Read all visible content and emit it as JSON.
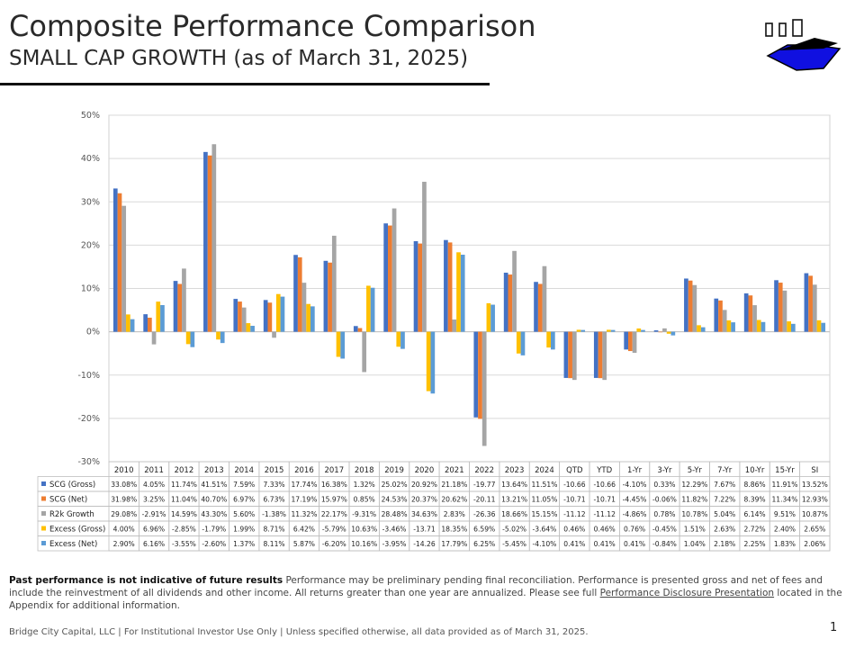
{
  "header": {
    "title": "Composite Performance Comparison",
    "subtitle": "SMALL CAP GROWTH (as of March 31, 2025)"
  },
  "chart_data": {
    "type": "bar",
    "categories": [
      "2010",
      "2011",
      "2012",
      "2013",
      "2014",
      "2015",
      "2016",
      "2017",
      "2018",
      "2019",
      "2020",
      "2021",
      "2022",
      "2023",
      "2024",
      "QTD",
      "YTD",
      "1-Yr",
      "3-Yr",
      "5-Yr",
      "7-Yr",
      "10-Yr",
      "15-Yr",
      "SI"
    ],
    "ylim": [
      -30,
      50
    ],
    "yticks": [
      -30,
      -20,
      -10,
      0,
      10,
      20,
      30,
      40,
      50
    ],
    "ytick_labels": [
      "-30%",
      "-20%",
      "-10%",
      "0%",
      "10%",
      "20%",
      "30%",
      "40%",
      "50%"
    ],
    "grid": true,
    "series": [
      {
        "name": "SCG (Gross)",
        "color": "#4472c4",
        "values": [
          33.08,
          4.05,
          11.74,
          41.51,
          7.59,
          7.33,
          17.74,
          16.38,
          1.32,
          25.02,
          20.92,
          21.18,
          -19.77,
          13.64,
          11.51,
          -10.66,
          -10.66,
          -4.1,
          0.33,
          12.29,
          7.67,
          8.86,
          11.91,
          13.52
        ],
        "labels": [
          "33.08%",
          "4.05%",
          "11.74%",
          "41.51%",
          "7.59%",
          "7.33%",
          "17.74%",
          "16.38%",
          "1.32%",
          "25.02%",
          "20.92%",
          "21.18%",
          "-19.77",
          "13.64%",
          "11.51%",
          "-10.66",
          "-10.66",
          "-4.10%",
          "0.33%",
          "12.29%",
          "7.67%",
          "8.86%",
          "11.91%",
          "13.52%"
        ]
      },
      {
        "name": "SCG (Net)",
        "color": "#ed7d31",
        "values": [
          31.98,
          3.25,
          11.04,
          40.7,
          6.97,
          6.73,
          17.19,
          15.97,
          0.85,
          24.53,
          20.37,
          20.62,
          -20.11,
          13.21,
          11.05,
          -10.71,
          -10.71,
          -4.45,
          -0.06,
          11.82,
          7.22,
          8.39,
          11.34,
          12.93
        ],
        "labels": [
          "31.98%",
          "3.25%",
          "11.04%",
          "40.70%",
          "6.97%",
          "6.73%",
          "17.19%",
          "15.97%",
          "0.85%",
          "24.53%",
          "20.37%",
          "20.62%",
          "-20.11",
          "13.21%",
          "11.05%",
          "-10.71",
          "-10.71",
          "-4.45%",
          "-0.06%",
          "11.82%",
          "7.22%",
          "8.39%",
          "11.34%",
          "12.93%"
        ]
      },
      {
        "name": "R2k Growth",
        "color": "#a5a5a5",
        "values": [
          29.08,
          -2.91,
          14.59,
          43.3,
          5.6,
          -1.38,
          11.32,
          22.17,
          -9.31,
          28.48,
          34.63,
          2.83,
          -26.36,
          18.66,
          15.15,
          -11.12,
          -11.12,
          -4.86,
          0.78,
          10.78,
          5.04,
          6.14,
          9.51,
          10.87
        ],
        "labels": [
          "29.08%",
          "-2.91%",
          "14.59%",
          "43.30%",
          "5.60%",
          "-1.38%",
          "11.32%",
          "22.17%",
          "-9.31%",
          "28.48%",
          "34.63%",
          "2.83%",
          "-26.36",
          "18.66%",
          "15.15%",
          "-11.12",
          "-11.12",
          "-4.86%",
          "0.78%",
          "10.78%",
          "5.04%",
          "6.14%",
          "9.51%",
          "10.87%"
        ]
      },
      {
        "name": "Excess (Gross)",
        "color": "#ffc000",
        "values": [
          4.0,
          6.96,
          -2.85,
          -1.79,
          1.99,
          8.71,
          6.42,
          -5.79,
          10.63,
          -3.46,
          -13.71,
          18.35,
          6.59,
          -5.02,
          -3.64,
          0.46,
          0.46,
          0.76,
          -0.45,
          1.51,
          2.63,
          2.72,
          2.4,
          2.65
        ],
        "labels": [
          "4.00%",
          "6.96%",
          "-2.85%",
          "-1.79%",
          "1.99%",
          "8.71%",
          "6.42%",
          "-5.79%",
          "10.63%",
          "-3.46%",
          "-13.71",
          "18.35%",
          "6.59%",
          "-5.02%",
          "-3.64%",
          "0.46%",
          "0.46%",
          "0.76%",
          "-0.45%",
          "1.51%",
          "2.63%",
          "2.72%",
          "2.40%",
          "2.65%"
        ]
      },
      {
        "name": "Excess (Net)",
        "color": "#5b9bd5",
        "values": [
          2.9,
          6.16,
          -3.55,
          -2.6,
          1.37,
          8.11,
          5.87,
          -6.2,
          10.16,
          -3.95,
          -14.26,
          17.79,
          6.25,
          -5.45,
          -4.1,
          0.41,
          0.41,
          0.41,
          -0.84,
          1.04,
          2.18,
          2.25,
          1.83,
          2.06
        ],
        "labels": [
          "2.90%",
          "6.16%",
          "-3.55%",
          "-2.60%",
          "1.37%",
          "8.11%",
          "5.87%",
          "-6.20%",
          "10.16%",
          "-3.95%",
          "-14.26",
          "17.79%",
          "6.25%",
          "-5.45%",
          "-4.10%",
          "0.41%",
          "0.41%",
          "0.41%",
          "-0.84%",
          "1.04%",
          "2.18%",
          "2.25%",
          "1.83%",
          "2.06%"
        ]
      }
    ]
  },
  "disclaimer": {
    "bold": "Past performance is not indicative of future results",
    "text1": " Performance may be preliminary pending final reconciliation. Performance is presented gross and net of fees and include the reinvestment of all dividends and other income. All returns greater than one year are annualized. Please see full ",
    "link": "Performance Disclosure Presentation",
    "text2": " located in the Appendix for additional information."
  },
  "footer": {
    "text": "Bridge City Capital, LLC | For Institutional Investor Use Only | Unless specified otherwise, all data provided as of March 31, 2025.",
    "page_number": "1"
  },
  "colors": {
    "logo_blue": "#1010e0",
    "text_dark": "#2a2a2a"
  }
}
